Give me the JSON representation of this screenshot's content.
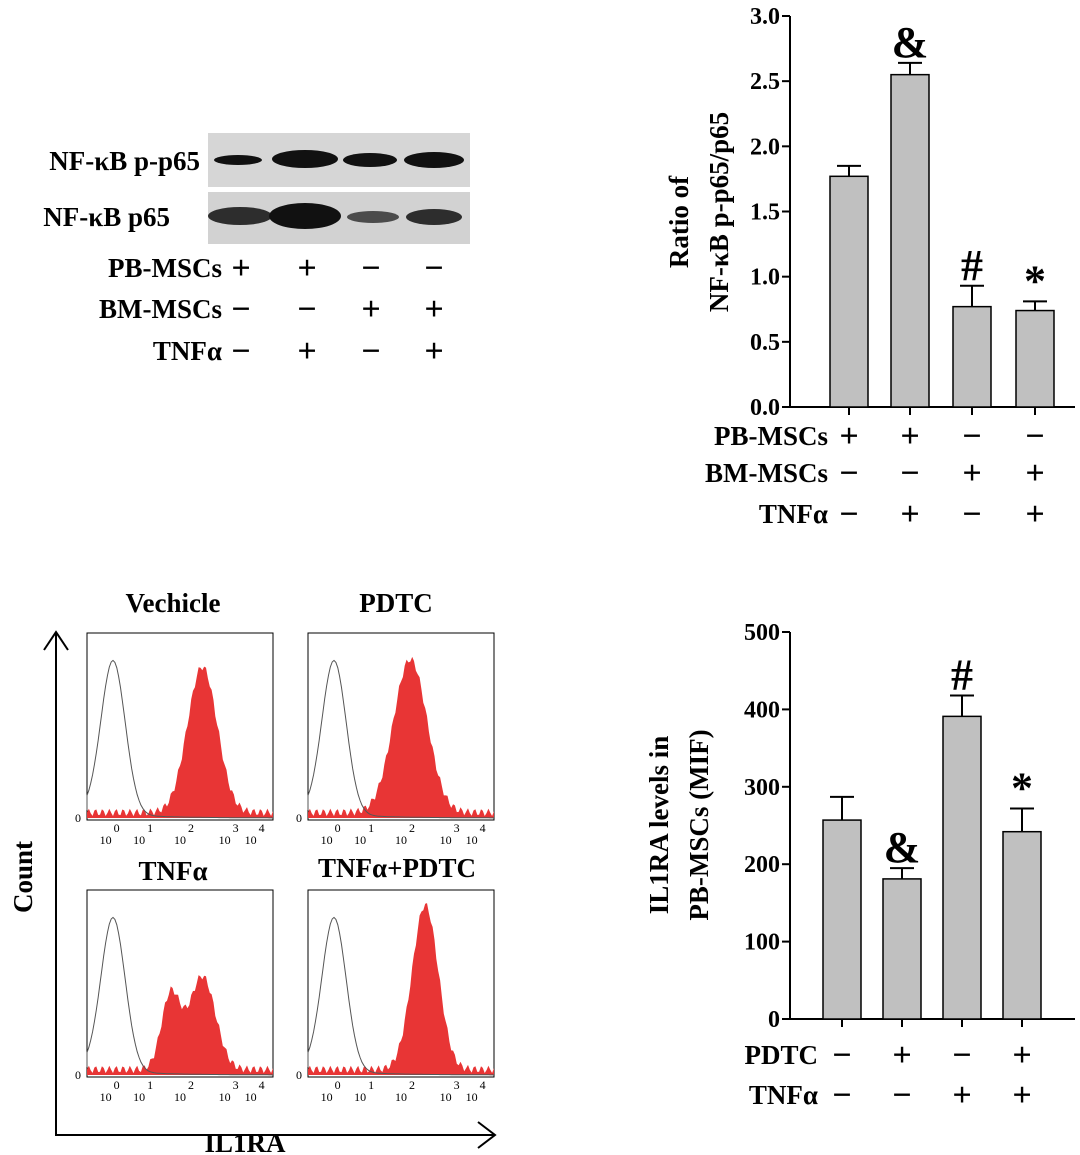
{
  "western_blot": {
    "rows": [
      "NF-κB p-p65",
      "NF-κB p65"
    ],
    "conditions": [
      {
        "label": "PB-MSCs",
        "signs": [
          "+",
          "+",
          "−",
          "−"
        ]
      },
      {
        "label": "BM-MSCs",
        "signs": [
          "−",
          "−",
          "+",
          "+"
        ]
      },
      {
        "label": "TNFα",
        "signs": [
          "−",
          "+",
          "−",
          "+"
        ]
      }
    ]
  },
  "flow": {
    "panels": [
      "Vechicle",
      "PDTC",
      "TNFα",
      "TNFα+PDTC"
    ],
    "xlabel": "IL1RA",
    "ylabel": "Count",
    "zero_label": "0",
    "tick_base": "10",
    "tick_exps": [
      "0",
      "1",
      "2",
      "3",
      "4"
    ]
  },
  "chart_data": [
    {
      "type": "bar",
      "ylabel_line1": "Ratio of",
      "ylabel_line2": "NF-κB p-p65/p65",
      "ylim": [
        0,
        3.0
      ],
      "yticks": [
        "0.0",
        "0.5",
        "1.0",
        "1.5",
        "2.0",
        "2.5",
        "3.0"
      ],
      "values": [
        1.77,
        2.55,
        0.77,
        0.74
      ],
      "errors": [
        0.08,
        0.09,
        0.16,
        0.07
      ],
      "annotations": [
        "",
        "&",
        "#",
        "*"
      ],
      "conditions": [
        {
          "label": "PB-MSCs",
          "signs": [
            "+",
            "+",
            "−",
            "−"
          ]
        },
        {
          "label": "BM-MSCs",
          "signs": [
            "−",
            "−",
            "+",
            "+"
          ]
        },
        {
          "label": "TNFα",
          "signs": [
            "−",
            "+",
            "−",
            "+"
          ]
        }
      ],
      "bar_color": "#c0c0c0"
    },
    {
      "type": "bar",
      "ylabel_line1": "IL1RA levels in",
      "ylabel_line2": "PB-MSCs (MIF)",
      "ylim": [
        0,
        500
      ],
      "yticks": [
        "0",
        "100",
        "200",
        "300",
        "400",
        "500"
      ],
      "values": [
        257,
        181,
        391,
        242
      ],
      "errors": [
        30,
        14,
        27,
        30
      ],
      "annotations": [
        "",
        "&",
        "#",
        "*"
      ],
      "conditions": [
        {
          "label": "PDTC",
          "signs": [
            "−",
            "+",
            "−",
            "+"
          ]
        },
        {
          "label": "TNFα",
          "signs": [
            "−",
            "−",
            "+",
            "+"
          ]
        }
      ],
      "bar_color": "#c0c0c0"
    }
  ]
}
